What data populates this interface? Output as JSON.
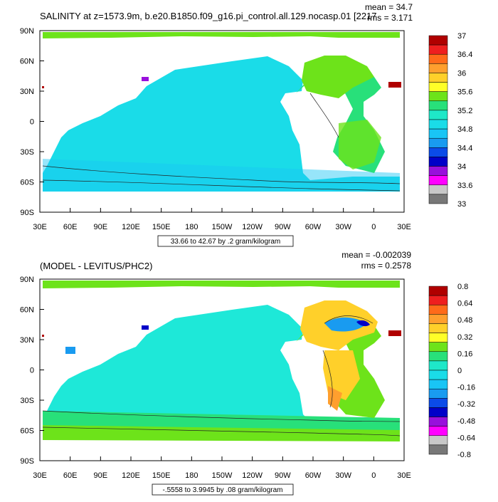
{
  "figure": {
    "colors": {
      "land": "#ffffff",
      "frame": "#000000",
      "ocean_label_box": "#ffffff",
      "contour": "#222222"
    }
  },
  "chart_data": [
    {
      "type": "heatmap",
      "title": "SALINITY at z=1573.9m, b.e20.B1850.f09_g16.pi_control.all.129.nocasp.01 [2217",
      "overlap_text": "rms = 3.171",
      "stats": {
        "mean": "mean = 34.7",
        "rms": "rms = 3.171"
      },
      "range_label": "33.66 to 42.67 by .2 gram/kilogram",
      "x_ticks": [
        "30E",
        "60E",
        "90E",
        "120E",
        "150E",
        "180",
        "150W",
        "120W",
        "90W",
        "60W",
        "30W",
        "0",
        "30E"
      ],
      "y_ticks": [
        "90N",
        "60N",
        "30N",
        "0",
        "30S",
        "60S",
        "90S"
      ],
      "xlim": [
        30,
        390
      ],
      "ylim": [
        -90,
        90
      ],
      "levels": [
        "37",
        "36.4",
        "36",
        "35.6",
        "35.2",
        "34.8",
        "34.4",
        "34",
        "33.6",
        "33"
      ],
      "colorbar": [
        "#b00000",
        "#ee1f1f",
        "#ff6a1a",
        "#ff9f2e",
        "#ffd02a",
        "#ffff28",
        "#6de31a",
        "#28e07a",
        "#1ee8c8",
        "#1adce8",
        "#19c5f5",
        "#199bf0",
        "#0b4be8",
        "#0000c8",
        "#9910dc",
        "#ff00ff",
        "#c8c8c8",
        "#787878"
      ],
      "fields": {
        "pacific": "#1adce8",
        "southern": "#1adce8",
        "indian": "#1adce8",
        "atlantic": "#28e07a",
        "north_atlantic": "#6de31a",
        "mediterranean": "#b00000",
        "arctic": "#6de31a"
      }
    },
    {
      "type": "heatmap",
      "title": "(MODEL - LEVITUS/PHC2)",
      "stats": {
        "mean": "mean = -0.002039",
        "rms": "rms = 0.2578"
      },
      "range_label": "-.5558 to 3.9945 by .08 gram/kilogram",
      "x_ticks": [
        "30E",
        "60E",
        "90E",
        "120E",
        "150E",
        "180",
        "150W",
        "120W",
        "90W",
        "60W",
        "30W",
        "0",
        "30E"
      ],
      "y_ticks": [
        "90N",
        "60N",
        "30N",
        "0",
        "30S",
        "60S",
        "90S"
      ],
      "xlim": [
        30,
        390
      ],
      "ylim": [
        -90,
        90
      ],
      "levels": [
        "0.8",
        "0.64",
        "0.48",
        "0.32",
        "0.16",
        "0",
        "-0.16",
        "-0.32",
        "-0.48",
        "-0.64",
        "-0.8"
      ],
      "colorbar": [
        "#b00000",
        "#ee1f1f",
        "#ff6a1a",
        "#ff9f2e",
        "#ffd02a",
        "#ffff28",
        "#6de31a",
        "#28e07a",
        "#1ee8c8",
        "#1adce8",
        "#19c5f5",
        "#199bf0",
        "#0b4be8",
        "#0000c8",
        "#9910dc",
        "#ff00ff",
        "#c8c8c8",
        "#787878"
      ],
      "fields": {
        "pacific": "#1ee8d8",
        "southern": "#28e07a",
        "south_band": "#6de31a",
        "north_atlantic": "#ffd02a",
        "gulf_stream": "#199bf0",
        "atlantic": "#6de31a",
        "mediterranean": "#b00000",
        "arctic": "#6de31a"
      }
    }
  ]
}
